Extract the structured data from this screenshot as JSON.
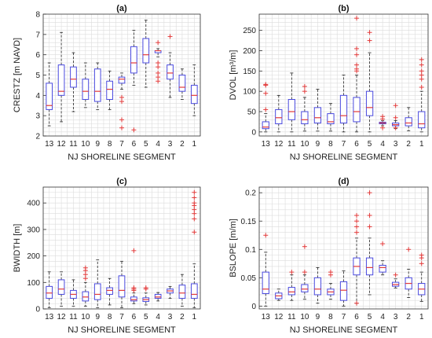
{
  "chart_data": [
    {
      "type": "boxplot",
      "panel_label": "(a)",
      "ylabel": "CRESTZ [m NAVD]",
      "xlabel": "NJ SHORELINE SEGMENT",
      "categories": [
        "13",
        "12",
        "11",
        "10",
        "9",
        "8",
        "7",
        "6",
        "5",
        "4",
        "3",
        "2",
        "1"
      ],
      "ylim": [
        2,
        8
      ],
      "yticks": [
        2,
        3,
        4,
        5,
        6,
        7,
        8
      ],
      "grid": true,
      "boxes": [
        {
          "min": 2.5,
          "q1": 3.3,
          "median": 3.5,
          "q3": 4.6,
          "max": 5.6,
          "outliers": []
        },
        {
          "min": 2.7,
          "q1": 4.0,
          "median": 4.2,
          "q3": 5.5,
          "max": 7.1,
          "outliers": []
        },
        {
          "min": 3.2,
          "q1": 4.4,
          "median": 4.8,
          "q3": 5.4,
          "max": 6.1,
          "outliers": []
        },
        {
          "min": 3.4,
          "q1": 3.8,
          "median": 4.2,
          "q3": 4.8,
          "max": 5.6,
          "outliers": []
        },
        {
          "min": 3.3,
          "q1": 3.7,
          "median": 4.2,
          "q3": 5.3,
          "max": 5.6,
          "outliers": []
        },
        {
          "min": 3.3,
          "q1": 3.8,
          "median": 4.3,
          "q3": 4.7,
          "max": 5.2,
          "outliers": []
        },
        {
          "min": 4.3,
          "q1": 4.6,
          "median": 4.8,
          "q3": 4.9,
          "max": 5.1,
          "outliers": [
            3.9,
            3.7,
            2.8,
            2.4
          ]
        },
        {
          "min": 4.5,
          "q1": 5.1,
          "median": 5.6,
          "q3": 6.4,
          "max": 7.2,
          "outliers": [
            2.3
          ]
        },
        {
          "min": 4.4,
          "q1": 5.6,
          "median": 6.0,
          "q3": 6.8,
          "max": 7.7,
          "outliers": []
        },
        {
          "min": 5.9,
          "q1": 6.1,
          "median": 6.2,
          "q3": 6.2,
          "max": 6.3,
          "outliers": [
            6.6,
            5.6,
            5.4,
            5.1,
            4.9,
            4.7
          ]
        },
        {
          "min": 3.9,
          "q1": 4.8,
          "median": 5.1,
          "q3": 5.5,
          "max": 6.1,
          "outliers": [
            6.9
          ]
        },
        {
          "min": 3.8,
          "q1": 4.2,
          "median": 4.4,
          "q3": 5.0,
          "max": 5.3,
          "outliers": []
        },
        {
          "min": 3.0,
          "q1": 3.6,
          "median": 4.0,
          "q3": 4.5,
          "max": 5.5,
          "outliers": []
        }
      ]
    },
    {
      "type": "boxplot",
      "panel_label": "(b)",
      "ylabel": "DVOL [m³/m]",
      "xlabel": "NJ SHORELINE SEGMENT",
      "categories": [
        "13",
        "12",
        "11",
        "10",
        "9",
        "8",
        "7",
        "6",
        "5",
        "4",
        "3",
        "2",
        "1"
      ],
      "ylim": [
        -10,
        290
      ],
      "yticks": [
        0,
        50,
        100,
        150,
        200,
        250
      ],
      "grid": true,
      "boxes": [
        {
          "min": 0,
          "q1": 8,
          "median": 12,
          "q3": 25,
          "max": 45,
          "outliers": [
            55,
            95,
            115,
            117
          ]
        },
        {
          "min": 0,
          "q1": 20,
          "median": 35,
          "q3": 55,
          "max": 90,
          "outliers": []
        },
        {
          "min": 0,
          "q1": 30,
          "median": 50,
          "q3": 80,
          "max": 145,
          "outliers": []
        },
        {
          "min": 2,
          "q1": 20,
          "median": 30,
          "q3": 50,
          "max": 85,
          "outliers": [
            100,
            112
          ]
        },
        {
          "min": 2,
          "q1": 22,
          "median": 35,
          "q3": 60,
          "max": 105,
          "outliers": []
        },
        {
          "min": 2,
          "q1": 20,
          "median": 25,
          "q3": 45,
          "max": 70,
          "outliers": []
        },
        {
          "min": 0,
          "q1": 22,
          "median": 40,
          "q3": 90,
          "max": 140,
          "outliers": []
        },
        {
          "min": 0,
          "q1": 25,
          "median": 50,
          "q3": 85,
          "max": 140,
          "outliers": [
            150,
            155,
            165,
            190,
            205,
            280
          ]
        },
        {
          "min": 0,
          "q1": 40,
          "median": 60,
          "q3": 100,
          "max": 195,
          "outliers": [
            225,
            245
          ]
        },
        {
          "min": 15,
          "q1": 20,
          "median": 22,
          "q3": 24,
          "max": 28,
          "outliers": [
            10,
            32,
            38
          ]
        },
        {
          "min": 8,
          "q1": 15,
          "median": 18,
          "q3": 22,
          "max": 28,
          "outliers": [
            10,
            35,
            65
          ]
        },
        {
          "min": 3,
          "q1": 15,
          "median": 22,
          "q3": 35,
          "max": 60,
          "outliers": []
        },
        {
          "min": 0,
          "q1": 10,
          "median": 20,
          "q3": 50,
          "max": 100,
          "outliers": [
            110,
            130,
            140,
            150,
            165,
            178
          ]
        }
      ]
    },
    {
      "type": "boxplot",
      "panel_label": "(c)",
      "ylabel": "BWIDTH [m]",
      "xlabel": "NJ SHORELINE SEGMENT",
      "categories": [
        "13",
        "12",
        "11",
        "10",
        "9",
        "8",
        "7",
        "6",
        "5",
        "4",
        "3",
        "2",
        "1"
      ],
      "ylim": [
        0,
        460
      ],
      "yticks": [
        0,
        100,
        200,
        300,
        400
      ],
      "grid": true,
      "boxes": [
        {
          "min": 5,
          "q1": 40,
          "median": 60,
          "q3": 85,
          "max": 140,
          "outliers": []
        },
        {
          "min": 10,
          "q1": 55,
          "median": 75,
          "q3": 110,
          "max": 140,
          "outliers": []
        },
        {
          "min": 10,
          "q1": 40,
          "median": 55,
          "q3": 70,
          "max": 110,
          "outliers": []
        },
        {
          "min": 10,
          "q1": 30,
          "median": 45,
          "q3": 65,
          "max": 100,
          "outliers": [
            115,
            130,
            145,
            155
          ]
        },
        {
          "min": 5,
          "q1": 35,
          "median": 55,
          "q3": 95,
          "max": 185,
          "outliers": []
        },
        {
          "min": 15,
          "q1": 55,
          "median": 70,
          "q3": 80,
          "max": 115,
          "outliers": []
        },
        {
          "min": 5,
          "q1": 45,
          "median": 70,
          "q3": 125,
          "max": 180,
          "outliers": []
        },
        {
          "min": 20,
          "q1": 30,
          "median": 35,
          "q3": 45,
          "max": 60,
          "outliers": [
            70,
            75,
            80,
            220
          ]
        },
        {
          "min": 15,
          "q1": 28,
          "median": 35,
          "q3": 42,
          "max": 60,
          "outliers": [
            75,
            80
          ]
        },
        {
          "min": 30,
          "q1": 40,
          "median": 45,
          "q3": 55,
          "max": 62,
          "outliers": []
        },
        {
          "min": 40,
          "q1": 60,
          "median": 68,
          "q3": 75,
          "max": 85,
          "outliers": []
        },
        {
          "min": 10,
          "q1": 40,
          "median": 60,
          "q3": 90,
          "max": 130,
          "outliers": []
        },
        {
          "min": 5,
          "q1": 40,
          "median": 55,
          "q3": 95,
          "max": 170,
          "outliers": [
            290,
            340,
            360,
            375,
            390,
            400,
            420,
            440
          ]
        }
      ]
    },
    {
      "type": "boxplot",
      "panel_label": "(d)",
      "ylabel": "BSLOPE [m/m]",
      "xlabel": "NJ SHORELINE SEGMENT",
      "categories": [
        "13",
        "12",
        "11",
        "10",
        "9",
        "8",
        "7",
        "6",
        "5",
        "4",
        "3",
        "2",
        "1"
      ],
      "ylim": [
        -0.005,
        0.21
      ],
      "yticks": [
        0,
        0.05,
        0.1,
        0.15,
        0.2
      ],
      "grid": true,
      "boxes": [
        {
          "min": 0.0,
          "q1": 0.022,
          "median": 0.03,
          "q3": 0.06,
          "max": 0.095,
          "outliers": [
            0.125
          ]
        },
        {
          "min": 0.01,
          "q1": 0.013,
          "median": 0.018,
          "q3": 0.023,
          "max": 0.03,
          "outliers": []
        },
        {
          "min": 0.01,
          "q1": 0.02,
          "median": 0.025,
          "q3": 0.033,
          "max": 0.055,
          "outliers": [
            0.06
          ]
        },
        {
          "min": 0.012,
          "q1": 0.025,
          "median": 0.03,
          "q3": 0.038,
          "max": 0.055,
          "outliers": [
            0.06,
            0.105
          ]
        },
        {
          "min": 0.005,
          "q1": 0.02,
          "median": 0.03,
          "q3": 0.05,
          "max": 0.068,
          "outliers": []
        },
        {
          "min": 0.012,
          "q1": 0.02,
          "median": 0.025,
          "q3": 0.03,
          "max": 0.04,
          "outliers": [
            0.055,
            0.06
          ]
        },
        {
          "min": 0.0,
          "q1": 0.01,
          "median": 0.028,
          "q3": 0.043,
          "max": 0.062,
          "outliers": []
        },
        {
          "min": 0.005,
          "q1": 0.055,
          "median": 0.07,
          "q3": 0.085,
          "max": 0.12,
          "outliers": [
            0.13,
            0.14,
            0.15,
            0.16,
            0.005
          ]
        },
        {
          "min": 0.02,
          "q1": 0.055,
          "median": 0.068,
          "q3": 0.085,
          "max": 0.12,
          "outliers": [
            0.14,
            0.16,
            0.2
          ]
        },
        {
          "min": 0.055,
          "q1": 0.06,
          "median": 0.068,
          "q3": 0.072,
          "max": 0.08,
          "outliers": [
            0.11
          ]
        },
        {
          "min": 0.032,
          "q1": 0.035,
          "median": 0.038,
          "q3": 0.042,
          "max": 0.048,
          "outliers": [
            0.055
          ]
        },
        {
          "min": 0.015,
          "q1": 0.03,
          "median": 0.04,
          "q3": 0.05,
          "max": 0.065,
          "outliers": [
            0.1
          ]
        },
        {
          "min": 0.008,
          "q1": 0.02,
          "median": 0.03,
          "q3": 0.04,
          "max": 0.06,
          "outliers": [
            0.075,
            0.085,
            0.09
          ]
        }
      ]
    }
  ],
  "style": {
    "box_color": "#4a4adf",
    "median_color": "#e23a3a",
    "outlier_color": "#e23a3a",
    "whisker_color": "#222222",
    "grid_color": "#dcdcdc"
  }
}
